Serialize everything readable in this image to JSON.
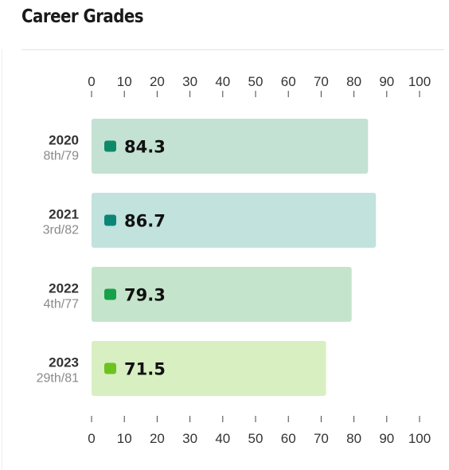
{
  "header": {
    "title": "Career Grades"
  },
  "chart_data": {
    "type": "bar",
    "orientation": "horizontal",
    "title": "Career Grades",
    "xlim": [
      0,
      100
    ],
    "ticks": [
      "0",
      "10",
      "20",
      "30",
      "40",
      "50",
      "60",
      "70",
      "80",
      "90",
      "100"
    ],
    "grid": false,
    "rows": [
      {
        "year": "2020",
        "rank": "8th/79",
        "value": 84.3,
        "label": "84.3",
        "bar_color": "#c3e2d3",
        "marker_color": "#0e8a68"
      },
      {
        "year": "2021",
        "rank": "3rd/82",
        "value": 86.7,
        "label": "86.7",
        "bar_color": "#c1e2dd",
        "marker_color": "#0b8676"
      },
      {
        "year": "2022",
        "rank": "4th/77",
        "value": 79.3,
        "label": "79.3",
        "bar_color": "#c4e5cb",
        "marker_color": "#17a04a"
      },
      {
        "year": "2023",
        "rank": "29th/81",
        "value": 71.5,
        "label": "71.5",
        "bar_color": "#d8efc2",
        "marker_color": "#6cc21e"
      }
    ]
  }
}
